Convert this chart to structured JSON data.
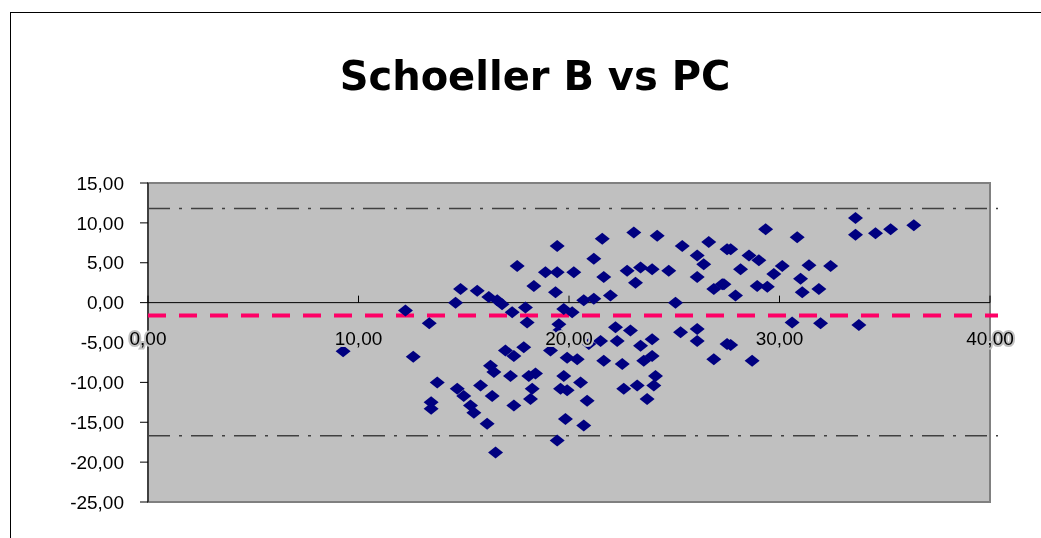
{
  "chart_data": {
    "type": "scatter",
    "title": "Schoeller B vs PC",
    "x": [
      9.27,
      12.23,
      13.36,
      12.6,
      13.74,
      13.45,
      13.45,
      14.85,
      14.61,
      15.64,
      16.19,
      16.59,
      16.82,
      17.3,
      17.54,
      18.01,
      18.33,
      17.93,
      18.88,
      19.44,
      19.44,
      19.36,
      19.75,
      20.15,
      20.23,
      20.7,
      21.18,
      21.18,
      21.58,
      21.65,
      21.97,
      23.08,
      24.19,
      22.76,
      23.4,
      23.95,
      23.16,
      24.74,
      25.06,
      25.38,
      26.09,
      26.4,
      26.64,
      27.51,
      26.09,
      26.88,
      27.28,
      14.69,
      15.0,
      15.32,
      15.48,
      15.8,
      16.11,
      16.35,
      16.27,
      16.43,
      16.98,
      17.38,
      17.22,
      17.38,
      17.85,
      18.09,
      18.25,
      18.17,
      18.41,
      19.12,
      19.44,
      19.52,
      19.75,
      19.91,
      20.39,
      19.6,
      19.91,
      20.55,
      20.86,
      19.83,
      20.7,
      19.44,
      16.51,
      20.94,
      21.5,
      21.65,
      22.21,
      22.29,
      22.53,
      22.92,
      23.4,
      23.95,
      23.55,
      23.95,
      24.11,
      24.03,
      22.6,
      23.24,
      23.71,
      25.3,
      26.09,
      26.09,
      26.88,
      27.51,
      27.68,
      29.34,
      30.84,
      28.55,
      29.02,
      28.15,
      27.36,
      27.91,
      28.94,
      29.42,
      29.73,
      30.13,
      31.0,
      31.4,
      32.43,
      31.08,
      31.87,
      33.61,
      33.61,
      34.56,
      35.28,
      36.38,
      30.6,
      31.95,
      33.77,
      27.68,
      28.7
    ],
    "values": [
      -6.1,
      -1.0,
      -2.6,
      -6.8,
      -10.0,
      -12.5,
      -13.3,
      1.7,
      0.0,
      1.5,
      0.7,
      0.3,
      -0.2,
      -1.2,
      4.6,
      -2.5,
      2.1,
      -0.6,
      3.8,
      3.8,
      7.1,
      1.3,
      -0.8,
      -1.2,
      3.8,
      0.3,
      0.5,
      5.5,
      8.0,
      3.2,
      0.9,
      8.8,
      8.4,
      4.0,
      4.4,
      4.2,
      2.5,
      4.0,
      0.0,
      7.1,
      5.9,
      4.8,
      7.6,
      6.7,
      3.2,
      1.7,
      2.3,
      -10.8,
      -11.7,
      -12.9,
      -13.8,
      -10.4,
      -15.2,
      -11.7,
      -7.9,
      -8.7,
      -6.0,
      -6.7,
      -9.2,
      -12.9,
      -5.6,
      -9.2,
      -10.8,
      -12.1,
      -8.9,
      -6.0,
      -3.7,
      -2.7,
      -9.2,
      -6.9,
      -7.1,
      -10.8,
      -11.0,
      -10.0,
      -12.3,
      -14.6,
      -15.4,
      -17.3,
      -18.8,
      -5.2,
      -4.8,
      -7.3,
      -3.1,
      -4.8,
      -7.7,
      -3.5,
      -5.4,
      -4.6,
      -7.3,
      -6.7,
      -9.2,
      -10.4,
      -10.8,
      -10.4,
      -12.1,
      -3.7,
      -3.3,
      -4.8,
      -7.1,
      -5.2,
      6.7,
      9.2,
      8.2,
      5.9,
      5.3,
      4.2,
      2.3,
      0.9,
      2.1,
      2.0,
      3.6,
      4.6,
      3.0,
      4.7,
      4.6,
      1.3,
      1.7,
      10.6,
      8.5,
      8.7,
      9.2,
      9.7,
      -2.5,
      -2.6,
      -2.8,
      -5.3,
      -7.3
    ],
    "color": "#000080",
    "marker": "diamond",
    "grid": false,
    "xlim": [
      0,
      40
    ],
    "xticks": [
      {
        "value": 0,
        "label": "0,00"
      },
      {
        "value": 10,
        "label": "10,00"
      },
      {
        "value": 20,
        "label": "20,00"
      },
      {
        "value": 30,
        "label": "30,00"
      },
      {
        "value": 40,
        "label": "40,00"
      }
    ],
    "ylim": [
      -25,
      15
    ],
    "yticks": [
      {
        "value": -25,
        "label": "-25,00"
      },
      {
        "value": -20,
        "label": "-20,00"
      },
      {
        "value": -15,
        "label": "-15,00"
      },
      {
        "value": -10,
        "label": "-10,00"
      },
      {
        "value": -5,
        "label": "-5,00"
      },
      {
        "value": 0,
        "label": "0,00"
      },
      {
        "value": 5,
        "label": "5,00"
      },
      {
        "value": 10,
        "label": "10,00"
      },
      {
        "value": 15,
        "label": "15,00"
      }
    ],
    "ref_lines": [
      {
        "axis": "y",
        "value": 11.8,
        "color": "#404040",
        "line_style": "dashdot"
      },
      {
        "axis": "y",
        "value": -16.7,
        "color": "#404040",
        "line_style": "dashdot"
      },
      {
        "axis": "y",
        "value": -1.6,
        "color": "#ff0066",
        "line_style": "dashed"
      }
    ]
  }
}
